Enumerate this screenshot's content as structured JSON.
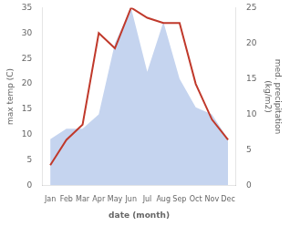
{
  "chart_data": {
    "type": "line",
    "categories": [
      "Jan",
      "Feb",
      "Mar",
      "Apr",
      "May",
      "Jun",
      "Jul",
      "Aug",
      "Sep",
      "Oct",
      "Nov",
      "Dec"
    ],
    "series": [
      {
        "type": "area",
        "color": "#c5d4ef",
        "axis": "y2",
        "values": [
          6.5,
          8,
          8,
          10,
          20,
          25,
          16,
          23,
          15,
          11,
          10,
          6.5
        ]
      },
      {
        "type": "line",
        "color": "#c0392b",
        "axis": "y",
        "values": [
          4,
          9,
          12,
          30,
          27,
          35,
          33,
          32,
          32,
          20,
          13,
          9
        ]
      }
    ],
    "xlabel": "date (month)",
    "ylabel": "max temp (C)",
    "y2label": "med. precipitation\n(kg/m2)",
    "ylim": [
      0,
      35
    ],
    "yticks": [
      0,
      5,
      10,
      15,
      20,
      25,
      30,
      35
    ],
    "y2lim": [
      0,
      25
    ],
    "y2ticks": [
      0,
      5,
      10,
      15,
      20,
      25
    ],
    "grid": false
  }
}
